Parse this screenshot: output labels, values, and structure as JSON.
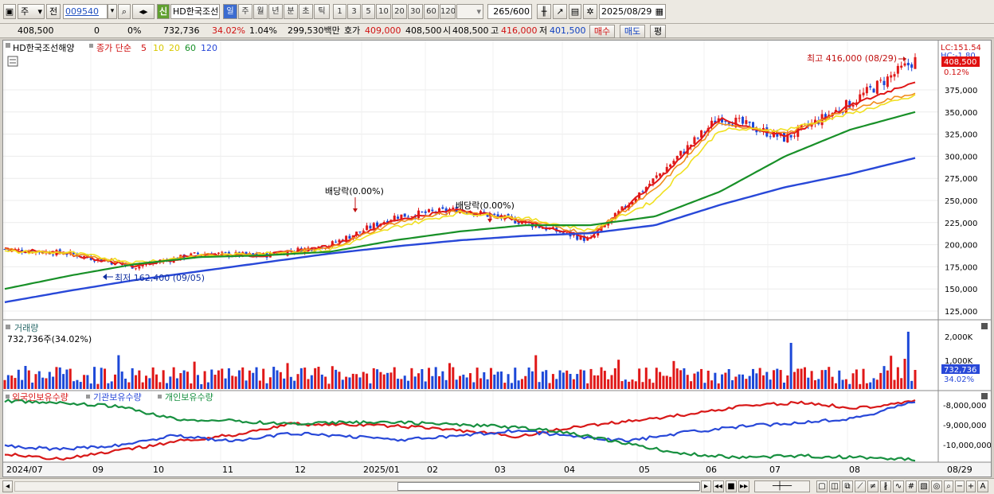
{
  "toolbar": {
    "period_label": "주",
    "prev_label": "전",
    "stock_code": "009540",
    "credit_label": "신",
    "stock_name": "HD한국조선",
    "period_tabs": [
      "일",
      "주",
      "월",
      "년",
      "분",
      "초",
      "틱"
    ],
    "active_period": "일",
    "minute_options": [
      "1",
      "3",
      "5",
      "10",
      "20",
      "30",
      "60",
      "120"
    ],
    "count_value": "265",
    "count_total": "/600",
    "date_value": "2025/08/29"
  },
  "quote": {
    "price": "408,500",
    "change": "0",
    "change_pct": "0%",
    "volume": "732,736",
    "volume_ratio": "34.02%",
    "turnover": "1.04%",
    "amount": "299,530백만",
    "bid_label": "호가",
    "bid_value": "409,000",
    "ask_value": "408,500",
    "open_label": "시",
    "open_value": "408,500",
    "high_label": "고",
    "high_value": "416,000",
    "low_label": "저",
    "low_value": "401,500",
    "buy_label": "매수",
    "sell_label": "매도",
    "eval_label": "평"
  },
  "price_pane": {
    "title": "HD한국조선해양",
    "ma_label": "종가 단순",
    "ma_periods": [
      "5",
      "10",
      "20",
      "60",
      "120"
    ],
    "ma_colors": [
      "#e01818",
      "#f08c1c",
      "#f0e020",
      "#189028",
      "#2848d8"
    ],
    "high_annotation": "최고 416,000 (08/29)",
    "low_annotation": "최저 162,400 (09/05)",
    "dividend_1": "배당락(0.00%)",
    "dividend_2": "배당락(0.00%)",
    "lc_label": "LC:151.54",
    "hc_label": "HC:-1.80",
    "current_price_tag": "408,500",
    "current_pct_tag": "0.12%",
    "y_ticks": [
      "375,000",
      "350,000",
      "325,000",
      "300,000",
      "275,000",
      "250,000",
      "225,000",
      "200,000",
      "175,000",
      "150,000",
      "125,000"
    ]
  },
  "volume_pane": {
    "title": "거래량",
    "value_label": "732,736주(34.02%)",
    "y_ticks": [
      "2,000K",
      "1,000K"
    ],
    "current_tag": "732,736",
    "current_pct_tag": "34.02%"
  },
  "holdings_pane": {
    "legend": [
      "외국인보유수량",
      "기관보유수량",
      "개인보유수량"
    ],
    "legend_colors": [
      "#d81818",
      "#2848d8",
      "#189040"
    ],
    "y_ticks": [
      "-8,000,000",
      "-9,000,000",
      "-10,000,000"
    ]
  },
  "x_axis": {
    "labels": [
      "2024/07",
      "09",
      "10",
      "11",
      "12",
      "2025/01",
      "02",
      "03",
      "04",
      "05",
      "06",
      "07",
      "08"
    ],
    "end_label": "08/29"
  },
  "chart_data": {
    "type": "line",
    "series": [
      {
        "name": "HD한국조선해양",
        "x": [
          "2024/07",
          "2024/08",
          "2024/09",
          "2024/10",
          "2024/11",
          "2024/12",
          "2025/01",
          "2025/02",
          "2025/03",
          "2025/04",
          "2025/05",
          "2025/06",
          "2025/07",
          "2025/08",
          "2025/08/29"
        ],
        "values": [
          195000,
          190000,
          175000,
          190000,
          188000,
          200000,
          232000,
          240000,
          225000,
          205000,
          275000,
          345000,
          320000,
          360000,
          408500
        ]
      },
      {
        "name": "5",
        "values": [
          195000,
          189000,
          176000,
          189000,
          188000,
          198000,
          228000,
          240000,
          226000,
          208000,
          270000,
          342000,
          322000,
          357000,
          385000
        ]
      },
      {
        "name": "10",
        "values": [
          194000,
          190000,
          178000,
          188000,
          189000,
          196000,
          225000,
          238000,
          228000,
          212000,
          262000,
          338000,
          325000,
          353000,
          372000
        ]
      },
      {
        "name": "20",
        "values": [
          192000,
          191000,
          180000,
          187000,
          190000,
          194000,
          220000,
          236000,
          230000,
          216000,
          250000,
          330000,
          330000,
          348000,
          368000
        ]
      },
      {
        "name": "60",
        "values": [
          150000,
          165000,
          178000,
          186000,
          188000,
          192000,
          205000,
          215000,
          222000,
          222000,
          232000,
          260000,
          300000,
          330000,
          350000
        ]
      },
      {
        "name": "120",
        "values": [
          135000,
          148000,
          160000,
          170000,
          180000,
          190000,
          198000,
          205000,
          210000,
          213000,
          222000,
          245000,
          265000,
          280000,
          298000
        ]
      }
    ],
    "ylim": [
      125000,
      416000
    ],
    "grid": true
  }
}
